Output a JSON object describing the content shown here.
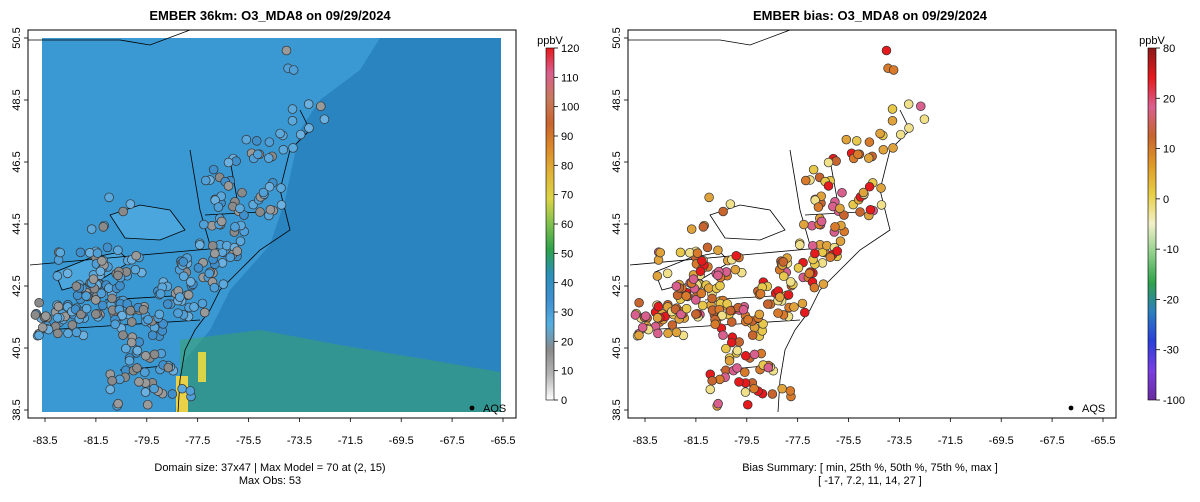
{
  "colors": {
    "ocean_field": "#2a84c0",
    "land_field": "#3a98d2",
    "plume": "#3aa46a",
    "hotspot": "#e9d247",
    "border": "#000000",
    "frame": "#000000"
  },
  "left_panel": {
    "title": "EMBER 36km: O3_MDA8 on 09/29/2024",
    "yticks": [
      "50.5",
      "48.5",
      "46.5",
      "44.5",
      "42.5",
      "40.5",
      "38.5"
    ],
    "xticks": [
      "-83.5",
      "-81.5",
      "-79.5",
      "-77.5",
      "-75.5",
      "-73.5",
      "-71.5",
      "-69.5",
      "-67.5",
      "-65.5"
    ],
    "legend_label": "AQS",
    "colorbar": {
      "unit": "ppbV",
      "ticks": [
        "120",
        "110",
        "100",
        "90",
        "80",
        "70",
        "60",
        "50",
        "40",
        "30",
        "20",
        "10",
        "0"
      ],
      "stops": [
        "#e41a1c",
        "#d95f8e",
        "#c87a5e",
        "#c8642e",
        "#dc8a2a",
        "#e0b43a",
        "#dcd447",
        "#7fc04e",
        "#2fa24a",
        "#2c8fb8",
        "#3e8fd0",
        "#55aee0",
        "#8a8a8a",
        "#b5b5b5",
        "#ffffff"
      ]
    },
    "caption_line1": "Domain size: 37x47 | Max Model = 70 at (2, 15)",
    "caption_line2": "Max Obs: 53"
  },
  "right_panel": {
    "title": "EMBER bias: O3_MDA8 on 09/29/2024",
    "yticks": [
      "50.5",
      "48.5",
      "46.5",
      "44.5",
      "42.5",
      "40.5",
      "38.5"
    ],
    "xticks": [
      "-83.5",
      "-81.5",
      "-79.5",
      "-77.5",
      "-75.5",
      "-73.5",
      "-71.5",
      "-69.5",
      "-67.5",
      "-65.5"
    ],
    "legend_label": "AQS",
    "colorbar": {
      "unit": "ppbV",
      "ticks": [
        "80",
        "20",
        "10",
        "0",
        "-10",
        "-20",
        "-30",
        "-100"
      ],
      "stops": [
        "#8b1a1a",
        "#e41a1c",
        "#d95f8e",
        "#c8642e",
        "#e09a2a",
        "#e8cf48",
        "#f2f0c8",
        "#8fd08a",
        "#2fa24a",
        "#2b7fc0",
        "#2a3fd8",
        "#7a3fe0",
        "#6a2aa0"
      ]
    },
    "caption_line1": "Bias Summary: [ min, 25th %, 50th %, 75th %, max ]",
    "caption_line2": "[ -17,  7.2,  11,  14,  27 ]"
  }
}
